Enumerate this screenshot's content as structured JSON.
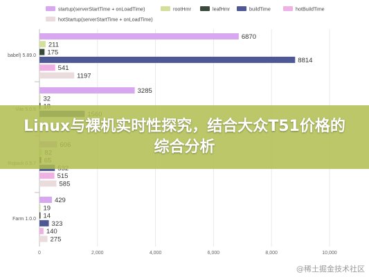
{
  "overlay_title": "Linux与裸机实时性探究，结合大众T51价格的综合分析",
  "watermark": "@稀土掘金技术社区",
  "chart_data": {
    "type": "bar",
    "orientation": "horizontal",
    "categories": [
      "babel) 5.89.0",
      "Vite 5.0.5",
      "Rspack 0.5.7",
      "Farm 1.0.0"
    ],
    "series": [
      {
        "name": "startup(serverStartTime + onLoadTime)",
        "color": "#d7a8ef",
        "values": [
          6870,
          3285,
          606,
          429
        ]
      },
      {
        "name": "rootHmr",
        "color": "#d3df9a",
        "values": [
          211,
          32,
          82,
          19
        ]
      },
      {
        "name": "leafHmr",
        "color": "#3b4b3b",
        "values": [
          175,
          18,
          65,
          14
        ]
      },
      {
        "name": "buildTime",
        "color": "#4e5894",
        "values": [
          8814,
          1560,
          532,
          323
        ]
      },
      {
        "name": "hotBuildTime",
        "color": "#efb1e3",
        "values": [
          541,
          null,
          515,
          140
        ]
      },
      {
        "name": "hotStartup(serverStartTime + onLoadTime)",
        "color": "#eadcdc",
        "values": [
          1197,
          null,
          585,
          275
        ]
      }
    ],
    "data_labels": [
      [
        "6870",
        "211",
        "175",
        "8814",
        "541",
        "1197"
      ],
      [
        "3285",
        "32",
        "18",
        "1560",
        "",
        ""
      ],
      [
        "606",
        "82",
        "65",
        "532",
        "515",
        "585"
      ],
      [
        "429",
        "19",
        "14",
        "323",
        "140",
        "275"
      ]
    ],
    "x_ticks": [
      "0",
      "2,000",
      "4,000",
      "6,000",
      "8,000",
      "10,000"
    ],
    "xlim": [
      0,
      10000
    ],
    "grid": true,
    "legend_position": "top"
  }
}
